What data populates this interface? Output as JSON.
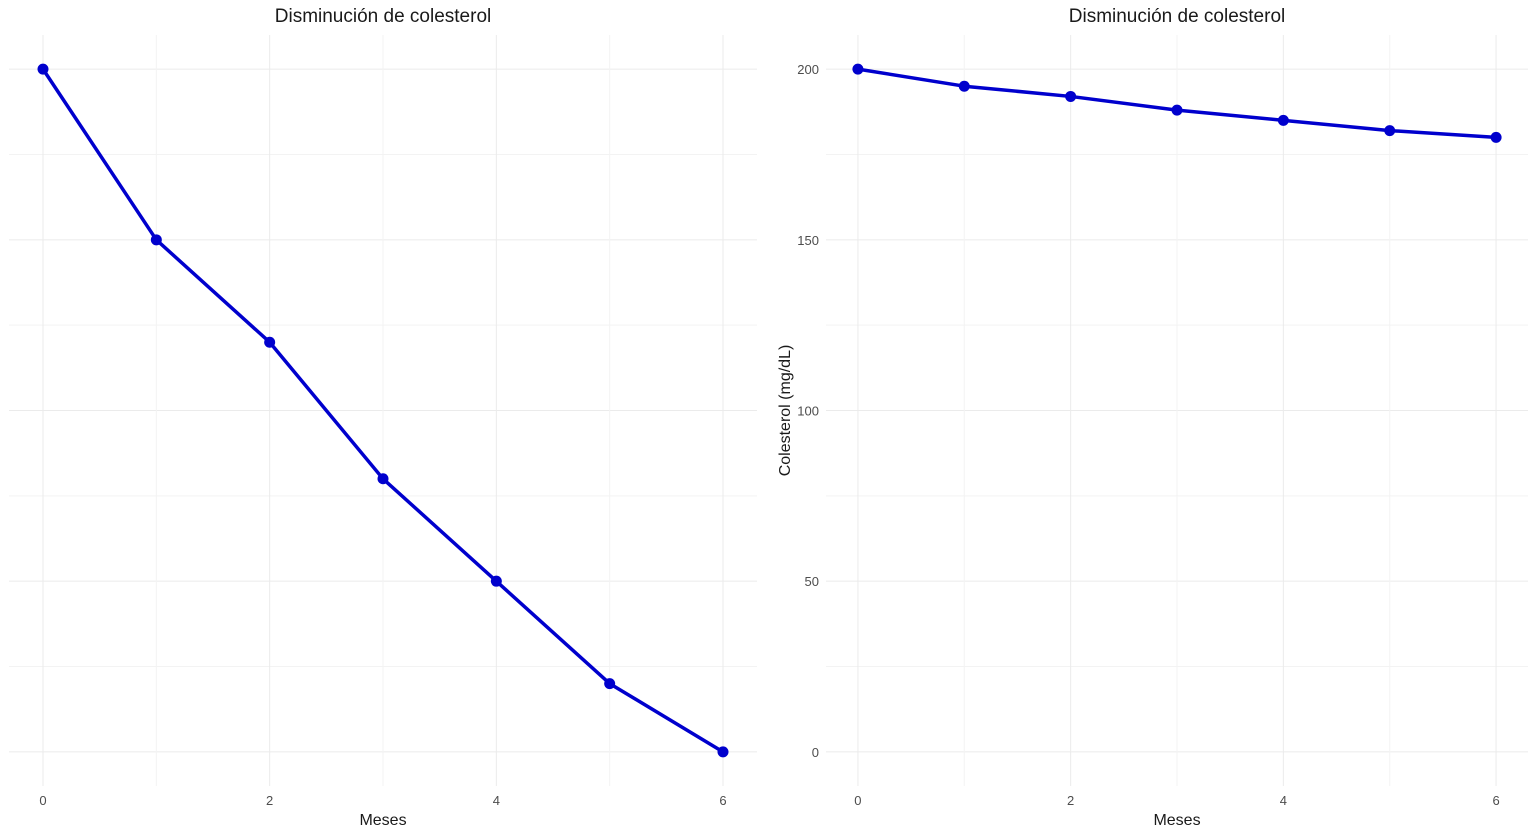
{
  "chart_data": [
    {
      "type": "line",
      "title": "Disminución de colesterol",
      "xlabel": "Meses",
      "ylabel": "",
      "x": [
        0,
        1,
        2,
        3,
        4,
        5,
        6
      ],
      "series": [
        {
          "values": [
            200,
            150,
            120,
            80,
            50,
            20,
            0
          ],
          "color": "#0000CD"
        }
      ],
      "xlim": [
        -0.3,
        6.3
      ],
      "ylim": [
        -10,
        210
      ],
      "x_ticks": [
        0,
        2,
        4,
        6
      ],
      "y_ticks": [],
      "y_gridlines": [
        0,
        25,
        50,
        75,
        100,
        125,
        150,
        175,
        200
      ],
      "grid": true,
      "legend": "none"
    },
    {
      "type": "line",
      "title": "Disminución de colesterol",
      "xlabel": "Meses",
      "ylabel": "Colesterol (mg/dL)",
      "x": [
        0,
        1,
        2,
        3,
        4,
        5,
        6
      ],
      "series": [
        {
          "values": [
            200,
            195,
            192,
            188,
            185,
            182,
            180
          ],
          "color": "#0000CD"
        }
      ],
      "xlim": [
        -0.3,
        6.3
      ],
      "ylim": [
        -10,
        210
      ],
      "x_ticks": [
        0,
        2,
        4,
        6
      ],
      "y_ticks": [
        0,
        50,
        100,
        150,
        200
      ],
      "y_gridlines": [
        0,
        25,
        50,
        75,
        100,
        125,
        150,
        175,
        200
      ],
      "grid": true,
      "legend": "none"
    }
  ]
}
